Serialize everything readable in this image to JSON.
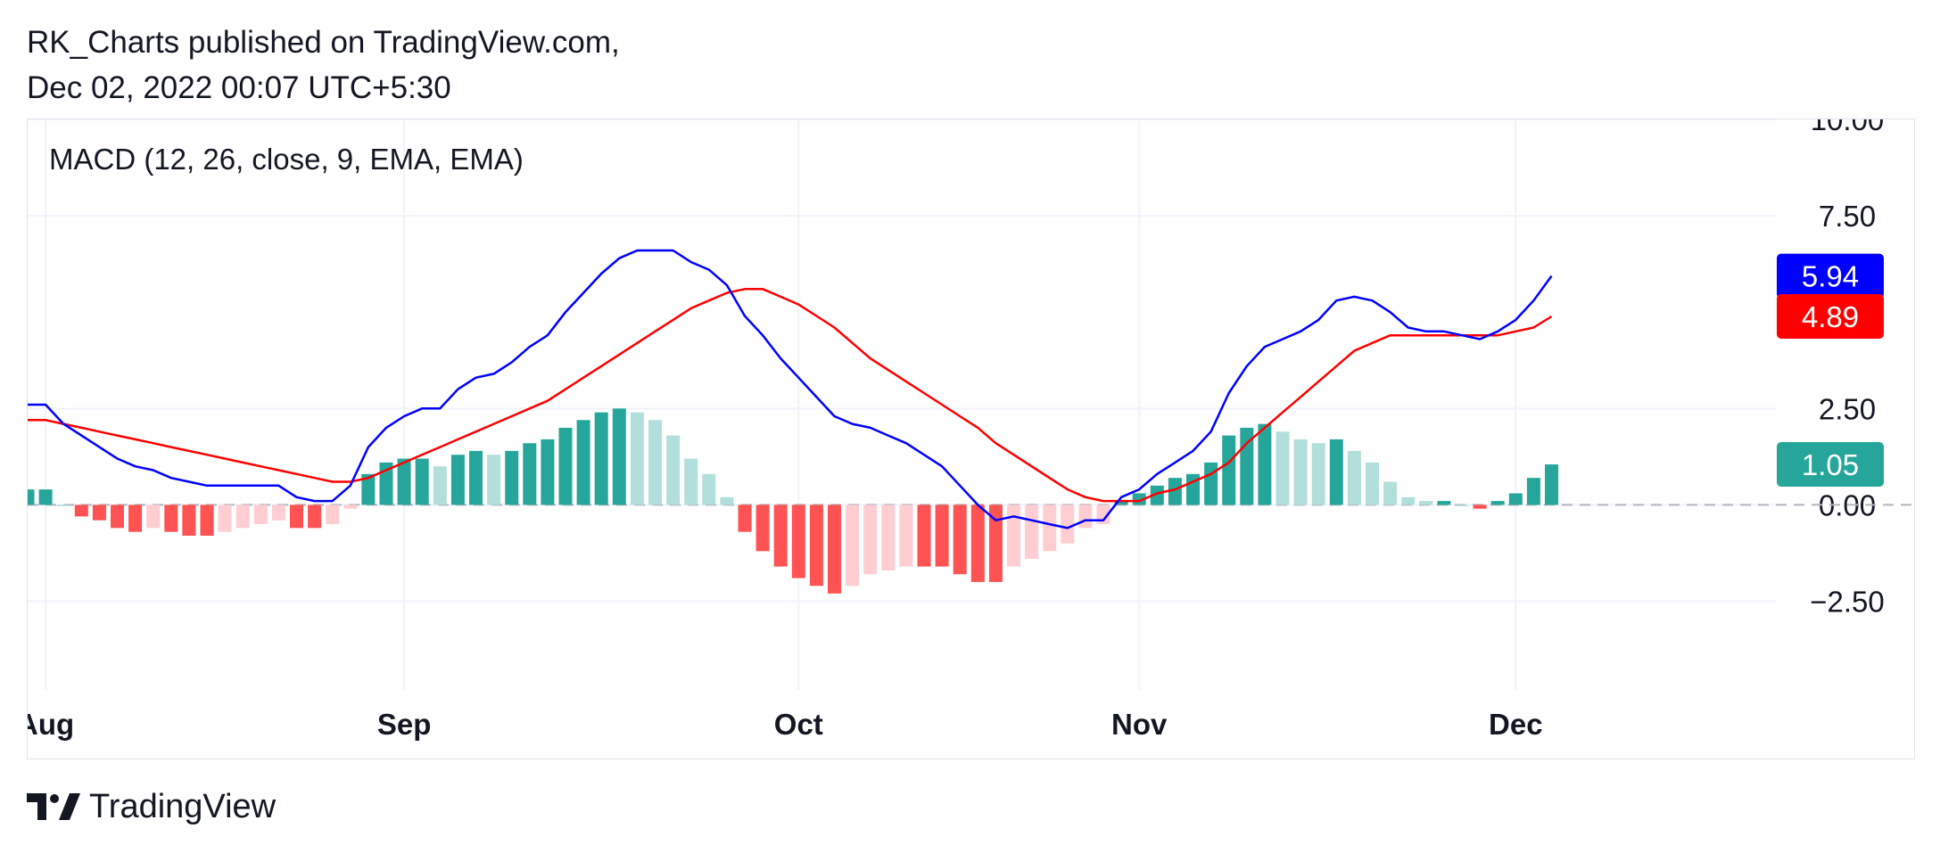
{
  "header": {
    "publisher_line": "RK_Charts published on TradingView.com,",
    "date_line": "Dec 02, 2022 00:07 UTC+5:30"
  },
  "footer": {
    "brand": "TradingView",
    "logo_icon": "tradingview-logo-icon"
  },
  "colors": {
    "macd_line": "#0000ff",
    "signal_line": "#ff0000",
    "hist_up_strong": "#26a69a",
    "hist_up_weak": "#b2dfdb",
    "hist_down_strong": "#ff5252",
    "hist_down_weak": "#ffcdd2",
    "grid": "#f0f3fa",
    "zero_line": "#b2b5be"
  },
  "chart_data": {
    "type": "line",
    "indicator": "MACD (12, 26, close, 9, EMA, EMA)",
    "ylim": [
      -4.8,
      10.0
    ],
    "y_ticks": [
      "10.00",
      "7.50",
      "2.50",
      "0.00",
      "−2.50"
    ],
    "y_tick_values": [
      10.0,
      7.5,
      2.5,
      0.0,
      -2.5
    ],
    "x_ticks": [
      {
        "label": "Aug",
        "index": 1
      },
      {
        "label": "Sep",
        "index": 21
      },
      {
        "label": "Oct",
        "index": 43
      },
      {
        "label": "Nov",
        "index": 62
      },
      {
        "label": "Dec",
        "index": 83
      }
    ],
    "grid": true,
    "series": [
      {
        "name": "MACD",
        "values": [
          2.6,
          2.6,
          2.1,
          1.8,
          1.5,
          1.2,
          1.0,
          0.9,
          0.7,
          0.6,
          0.5,
          0.5,
          0.5,
          0.5,
          0.5,
          0.2,
          0.1,
          0.1,
          0.5,
          1.5,
          2.0,
          2.3,
          2.5,
          2.5,
          3.0,
          3.3,
          3.4,
          3.7,
          4.1,
          4.4,
          5.0,
          5.5,
          6.0,
          6.4,
          6.6,
          6.6,
          6.6,
          6.3,
          6.1,
          5.7,
          4.9,
          4.4,
          3.8,
          3.3,
          2.8,
          2.3,
          2.1,
          2.0,
          1.8,
          1.6,
          1.3,
          1.0,
          0.5,
          0.0,
          -0.4,
          -0.3,
          -0.4,
          -0.5,
          -0.6,
          -0.4,
          -0.4,
          0.2,
          0.4,
          0.8,
          1.1,
          1.4,
          1.9,
          2.9,
          3.6,
          4.1,
          4.3,
          4.5,
          4.8,
          5.3,
          5.4,
          5.3,
          5.0,
          4.6,
          4.5,
          4.5,
          4.4,
          4.3,
          4.5,
          4.8,
          5.3,
          5.94
        ]
      },
      {
        "name": "Signal",
        "values": [
          2.2,
          2.2,
          2.1,
          2.0,
          1.9,
          1.8,
          1.7,
          1.6,
          1.5,
          1.4,
          1.3,
          1.2,
          1.1,
          1.0,
          0.9,
          0.8,
          0.7,
          0.6,
          0.6,
          0.7,
          0.9,
          1.1,
          1.3,
          1.5,
          1.7,
          1.9,
          2.1,
          2.3,
          2.5,
          2.7,
          3.0,
          3.3,
          3.6,
          3.9,
          4.2,
          4.5,
          4.8,
          5.1,
          5.3,
          5.5,
          5.6,
          5.6,
          5.4,
          5.2,
          4.9,
          4.6,
          4.2,
          3.8,
          3.5,
          3.2,
          2.9,
          2.6,
          2.3,
          2.0,
          1.6,
          1.3,
          1.0,
          0.7,
          0.4,
          0.2,
          0.1,
          0.1,
          0.1,
          0.3,
          0.4,
          0.6,
          0.8,
          1.1,
          1.6,
          2.0,
          2.4,
          2.8,
          3.2,
          3.6,
          4.0,
          4.2,
          4.4,
          4.4,
          4.4,
          4.4,
          4.4,
          4.4,
          4.4,
          4.5,
          4.6,
          4.89
        ]
      },
      {
        "name": "Histogram",
        "values": [
          0.4,
          0.4,
          0.0,
          -0.3,
          -0.4,
          -0.6,
          -0.7,
          -0.6,
          -0.7,
          -0.8,
          -0.8,
          -0.7,
          -0.6,
          -0.5,
          -0.4,
          -0.6,
          -0.6,
          -0.5,
          -0.1,
          0.8,
          1.1,
          1.2,
          1.2,
          1.0,
          1.3,
          1.4,
          1.3,
          1.4,
          1.6,
          1.7,
          2.0,
          2.2,
          2.4,
          2.5,
          2.4,
          2.2,
          1.8,
          1.2,
          0.8,
          0.2,
          -0.7,
          -1.2,
          -1.6,
          -1.9,
          -2.1,
          -2.3,
          -2.1,
          -1.8,
          -1.7,
          -1.6,
          -1.6,
          -1.6,
          -1.8,
          -2.0,
          -2.0,
          -1.6,
          -1.4,
          -1.2,
          -1.0,
          -0.6,
          -0.5,
          0.1,
          0.3,
          0.5,
          0.7,
          0.8,
          1.1,
          1.8,
          2.0,
          2.1,
          1.9,
          1.7,
          1.6,
          1.7,
          1.4,
          1.1,
          0.6,
          0.2,
          0.1,
          0.1,
          0.0,
          -0.1,
          0.1,
          0.3,
          0.7,
          1.05
        ]
      }
    ],
    "last_value_labels": [
      {
        "series": "MACD",
        "text": "5.94",
        "value": 5.94
      },
      {
        "series": "Signal",
        "text": "4.89",
        "value": 4.89
      },
      {
        "series": "Histogram",
        "text": "1.05",
        "value": 1.05
      }
    ]
  }
}
